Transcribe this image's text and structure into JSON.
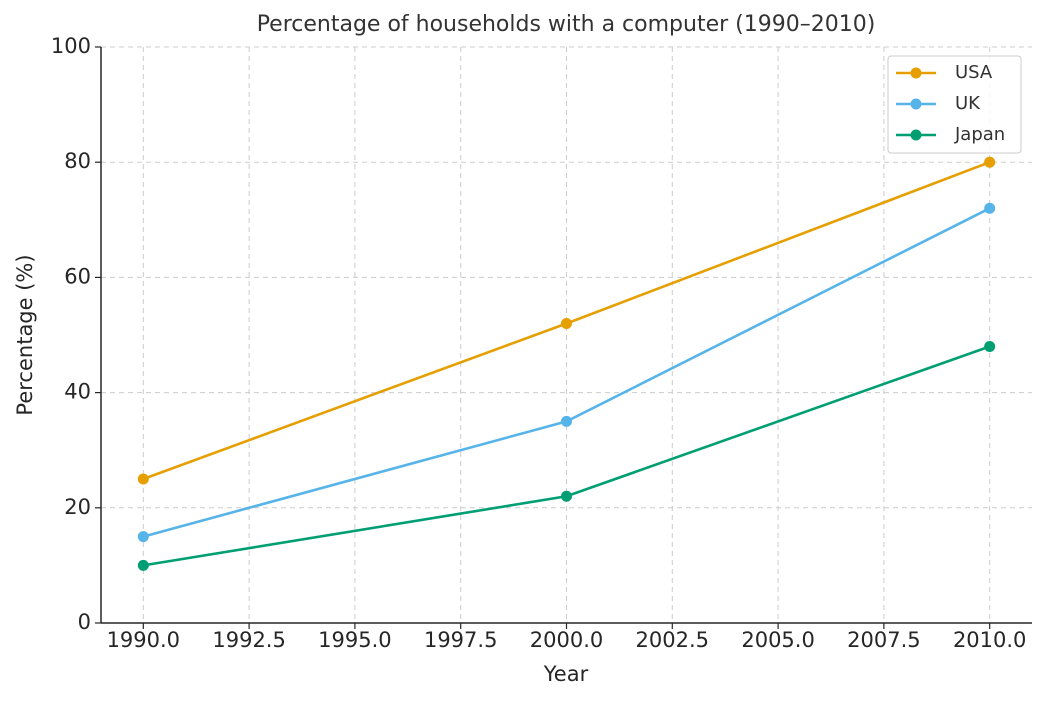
{
  "chart_data": {
    "type": "line",
    "title": "Percentage of households with a computer (1990–2010)",
    "x_label": "Year",
    "y_label": "Percentage (%)",
    "x": [
      1990,
      2000,
      2010
    ],
    "series": [
      {
        "name": "USA",
        "color": "#e69f00",
        "values": [
          25,
          52,
          80
        ]
      },
      {
        "name": "UK",
        "color": "#56b4e9",
        "values": [
          15,
          35,
          72
        ]
      },
      {
        "name": "Japan",
        "color": "#009e73",
        "values": [
          10,
          22,
          48
        ]
      }
    ],
    "xlim": [
      1989,
      2011
    ],
    "xticks": [
      {
        "value": 1990,
        "label": "1990.0"
      },
      1992.5,
      {
        "value": 1995,
        "label": "1995.0"
      },
      1997.5,
      {
        "value": 2000,
        "label": "2000.0"
      },
      2002.5,
      {
        "value": 2005,
        "label": "2005.0"
      },
      2007.5,
      {
        "value": 2010,
        "label": "2010.0"
      }
    ],
    "ylim": [
      0,
      100
    ],
    "yticks": [
      0,
      20,
      40,
      60,
      80,
      100
    ],
    "grid": true,
    "legend": "upper right"
  }
}
